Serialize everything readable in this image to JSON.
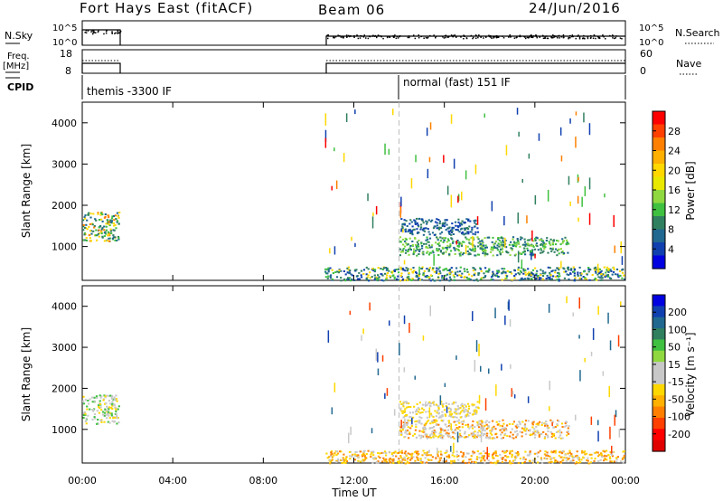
{
  "header": {
    "station": "Fort Hays East (fitACF)",
    "beam": "Beam 06",
    "date": "24/Jun/2016"
  },
  "top_panels": {
    "nsky_label": "N.Sky",
    "nsearch_label": "N.Search",
    "exp_top": "10^5",
    "exp_bottom": "10^0",
    "exp_top_r": "10^5",
    "exp_bottom_r": "10^0",
    "freq_label_1": "Freq.",
    "freq_label_2": "[MHz]",
    "freq_ticks": [
      "18",
      "8"
    ],
    "nave_ticks": [
      "60",
      "0"
    ],
    "nave_label": "Nave",
    "cpid_label": "CPID",
    "cpid_1": "themis -3300 IF",
    "cpid_2": "normal (fast) 151 IF"
  },
  "colors": {
    "grey": "#c8c8c8",
    "dashed_marker": "#bbbbbb"
  },
  "chart_data": [
    {
      "type": "heatmap",
      "title": "",
      "xlabel": "",
      "ylabel": "Slant Range [km]",
      "xlim": [
        0,
        24
      ],
      "ylim": [
        180,
        4500
      ],
      "yticks": [
        "4000",
        "3000",
        "2000",
        "1000"
      ],
      "colorbar_label": "Power [dB]",
      "colorbar_ticks": [
        "28",
        "24",
        "20",
        "16",
        "12",
        "8",
        "4"
      ],
      "colorbar_colors": [
        "#ff0000",
        "#ff4000",
        "#ff8000",
        "#ffb000",
        "#ffd800",
        "#e8e800",
        "#90d840",
        "#40c040",
        "#308060",
        "#206890",
        "#1040b0",
        "#0000e0"
      ],
      "regions": [
        {
          "t": [
            0.0,
            1.6
          ],
          "r": [
            1150,
            1850
          ],
          "colors": [
            "#ffd800",
            "#ff8000",
            "#308060",
            "#40c040",
            "#206890"
          ]
        },
        {
          "t": [
            10.7,
            24.0
          ],
          "r": [
            190,
            520
          ],
          "colors": [
            "#206890",
            "#308060",
            "#40c040",
            "#ffd800",
            "#1040b0"
          ]
        },
        {
          "t": [
            14.0,
            21.5
          ],
          "r": [
            800,
            1250
          ],
          "colors": [
            "#308060",
            "#40c040",
            "#90d840",
            "#206890"
          ]
        },
        {
          "t": [
            14.0,
            17.5
          ],
          "r": [
            1300,
            1700
          ],
          "colors": [
            "#206890",
            "#1040b0",
            "#308060"
          ]
        }
      ],
      "scatter_colors": [
        "#1040b0",
        "#308060",
        "#40c040",
        "#ffd800",
        "#ff8000",
        "#ff0000"
      ]
    },
    {
      "type": "heatmap",
      "title": "",
      "xlabel": "Time UT",
      "ylabel": "Slant Range [km]",
      "xlim": [
        0,
        24
      ],
      "ylim": [
        180,
        4500
      ],
      "xticks": [
        "00:00",
        "04:00",
        "08:00",
        "12:00",
        "16:00",
        "20:00",
        "00:00"
      ],
      "yticks": [
        "4000",
        "3000",
        "2000",
        "1000"
      ],
      "colorbar_label": "Velocity [m s⁻¹]",
      "colorbar_ticks": [
        "200",
        "100",
        "50",
        "15",
        "-15",
        "-50",
        "-100",
        "-200"
      ],
      "colorbar_colors": [
        "#0000e0",
        "#1040b0",
        "#206890",
        "#308060",
        "#40c040",
        "#90d840",
        "#c8c8c8",
        "#c8c8c8",
        "#ffd800",
        "#ffb000",
        "#ff8000",
        "#ff4000",
        "#ff0000",
        "#e00000"
      ],
      "regions": [
        {
          "t": [
            0.0,
            1.6
          ],
          "r": [
            1150,
            1850
          ],
          "colors": [
            "#c8c8c8",
            "#c8c8c8",
            "#40c040",
            "#ffd800"
          ]
        },
        {
          "t": [
            10.7,
            24.0
          ],
          "r": [
            190,
            500
          ],
          "colors": [
            "#ffb000",
            "#ffd800",
            "#ff8000",
            "#c8c8c8"
          ]
        },
        {
          "t": [
            14.0,
            21.5
          ],
          "r": [
            800,
            1250
          ],
          "colors": [
            "#c8c8c8",
            "#c8c8c8",
            "#ffd800",
            "#ff8000"
          ]
        },
        {
          "t": [
            14.0,
            17.5
          ],
          "r": [
            1300,
            1700
          ],
          "colors": [
            "#c8c8c8",
            "#ffd800"
          ]
        }
      ],
      "scatter_colors": [
        "#1040b0",
        "#206890",
        "#ff4000",
        "#ffd800",
        "#c8c8c8"
      ]
    }
  ]
}
